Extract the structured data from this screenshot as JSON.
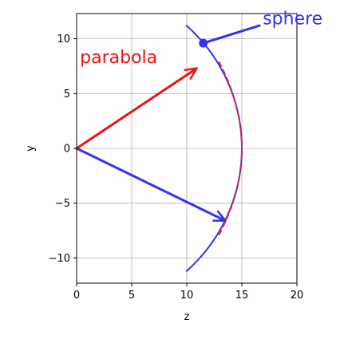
{
  "chart_data": {
    "type": "line",
    "title": "",
    "xlabel": "z",
    "ylabel": "y",
    "xlim": [
      0,
      20
    ],
    "ylim": [
      -12.3,
      12.3
    ],
    "xticks": [
      0,
      5,
      10,
      15,
      20
    ],
    "yticks": [
      -10,
      -5,
      0,
      5,
      10
    ],
    "xtick_labels": [
      "0",
      "5",
      "10",
      "15",
      "20"
    ],
    "ytick_labels": [
      "−10",
      "−5",
      "0",
      "5",
      "10"
    ],
    "grid": true,
    "series": [
      {
        "name": "sphere",
        "kind": "arc",
        "style": "solid",
        "color": "#3333ee",
        "center": [
          0,
          0
        ],
        "radius": 15,
        "angle_deg_range": [
          -48.5,
          48.5
        ]
      },
      {
        "name": "parabola",
        "kind": "parabola",
        "style": "dashed",
        "color": "#ee2222",
        "vertex_z": 15,
        "focal_length": 7.5,
        "y_range": [
          -7.9,
          7.9
        ]
      }
    ],
    "arrows": [
      {
        "name": "parabola-ray",
        "color": "#ee1111",
        "from": [
          0,
          0
        ],
        "to": [
          10.9,
          7.3
        ]
      },
      {
        "name": "sphere-ray",
        "color": "#3333ee",
        "from": [
          0,
          0
        ],
        "to": [
          13.5,
          -6.6
        ]
      }
    ],
    "annotations": [
      {
        "text": "parabola",
        "color": "#ee1111",
        "anchor": [
          0.3,
          7.8
        ]
      },
      {
        "text": "sphere",
        "color": "#3333ee",
        "anchor": [
          16.9,
          11.3
        ],
        "pointer_from": [
          16.6,
          11.2
        ],
        "pointer_to": [
          11.5,
          9.6
        ],
        "dot": [
          11.5,
          9.6
        ]
      }
    ]
  }
}
